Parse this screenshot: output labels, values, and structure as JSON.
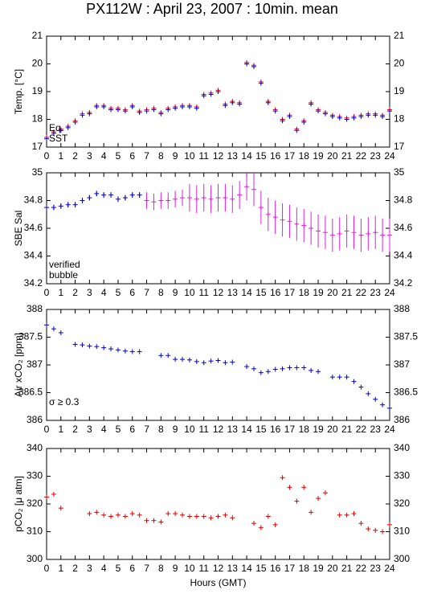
{
  "chart_data": [
    {
      "type": "scatter",
      "title": "PX112W : April 23, 2007 : 10min. mean",
      "ylabel": "Temp. [°C]",
      "x": [
        0,
        0.5,
        1,
        1.5,
        2,
        2.5,
        3,
        3.5,
        4,
        4.5,
        5,
        5.5,
        6,
        6.5,
        7,
        7.5,
        8,
        8.5,
        9,
        9.5,
        10,
        10.5,
        11,
        11.5,
        12,
        12.5,
        13,
        13.5,
        14,
        14.5,
        15,
        15.5,
        16,
        16.5,
        17,
        17.5,
        18,
        18.5,
        19,
        19.5,
        20,
        20.5,
        21,
        21.5,
        22,
        22.5,
        23,
        23.5,
        24
      ],
      "series": [
        {
          "name": "Eq.",
          "color": "#ff0000",
          "values": [
            17.35,
            17.55,
            17.65,
            17.75,
            17.95,
            18.2,
            18.25,
            18.5,
            18.5,
            18.4,
            18.4,
            18.35,
            18.5,
            18.3,
            18.35,
            18.4,
            18.25,
            18.4,
            18.45,
            18.5,
            18.5,
            18.45,
            18.9,
            18.95,
            19.05,
            18.55,
            18.65,
            18.6,
            20.05,
            19.95,
            19.35,
            18.65,
            18.35,
            18.0,
            18.15,
            17.65,
            17.95,
            18.6,
            18.35,
            18.25,
            18.15,
            18.1,
            18.05,
            18.1,
            18.15,
            18.2,
            18.2,
            18.15,
            18.35
          ]
        },
        {
          "name": "SST",
          "color": "#0000cc",
          "values": [
            17.3,
            17.5,
            17.6,
            17.7,
            17.9,
            18.15,
            18.2,
            18.45,
            18.45,
            18.35,
            18.35,
            18.3,
            18.45,
            18.25,
            18.3,
            18.35,
            18.2,
            18.35,
            18.4,
            18.45,
            18.45,
            18.4,
            18.85,
            18.9,
            19.0,
            18.5,
            18.6,
            18.55,
            20.0,
            19.9,
            19.3,
            18.6,
            18.3,
            17.95,
            18.1,
            17.6,
            17.9,
            18.55,
            18.3,
            18.2,
            18.1,
            18.05,
            18.0,
            18.05,
            18.1,
            18.15,
            18.15,
            18.1,
            18.3
          ]
        }
      ],
      "xlim": [
        0,
        24
      ],
      "xticks": [
        0,
        1,
        2,
        3,
        4,
        5,
        6,
        7,
        8,
        9,
        10,
        11,
        12,
        13,
        14,
        15,
        16,
        17,
        18,
        19,
        20,
        21,
        22,
        23,
        24
      ],
      "ylim": [
        17,
        21
      ],
      "yticks": [
        17,
        18,
        19,
        20,
        21
      ]
    },
    {
      "type": "scatter",
      "ylabel": "SBE Sal",
      "x": [
        0,
        0.5,
        1,
        1.5,
        2,
        2.5,
        3,
        3.5,
        4,
        4.5,
        5,
        5.5,
        6,
        6.5,
        7,
        7.5,
        8,
        8.5,
        9,
        9.5,
        10,
        10.5,
        11,
        11.5,
        12,
        12.5,
        13,
        13.5,
        14,
        14.5,
        15,
        15.5,
        16,
        16.5,
        17,
        17.5,
        18,
        18.5,
        19,
        19.5,
        20,
        20.5,
        21,
        21.5,
        22,
        22.5,
        23,
        23.5,
        24
      ],
      "series": [
        {
          "name": "verified",
          "color": "#0000cc",
          "values": [
            34.75,
            34.75,
            34.76,
            34.77,
            34.77,
            34.8,
            34.82,
            34.85,
            34.84,
            34.84,
            34.81,
            34.82,
            34.84,
            34.84,
            null,
            null,
            null,
            null,
            null,
            null,
            null,
            null,
            null,
            null,
            null,
            null,
            null,
            null,
            null,
            null,
            null,
            null,
            null,
            null,
            null,
            null,
            null,
            null,
            null,
            null,
            null,
            null,
            null,
            null,
            null,
            null,
            null,
            null,
            null
          ],
          "errors": [
            0.02,
            0.02,
            0.02,
            0.02,
            0.02,
            0.02,
            0.02,
            0.02,
            0.02,
            0.02,
            0.02,
            0.02,
            0.02,
            0.02,
            null,
            null,
            null,
            null,
            null,
            null,
            null,
            null,
            null,
            null,
            null,
            null,
            null,
            null,
            null,
            null,
            null,
            null,
            null,
            null,
            null,
            null,
            null,
            null,
            null,
            null,
            null,
            null,
            null,
            null,
            null,
            null,
            null,
            null,
            null
          ]
        },
        {
          "name": "bubble",
          "color": "#dd22dd",
          "values": [
            null,
            null,
            null,
            null,
            null,
            null,
            null,
            null,
            null,
            null,
            null,
            null,
            null,
            null,
            34.8,
            34.79,
            34.8,
            34.8,
            34.81,
            34.82,
            34.82,
            34.81,
            34.82,
            34.81,
            34.82,
            34.82,
            34.81,
            34.84,
            34.9,
            34.88,
            34.75,
            34.7,
            34.68,
            34.66,
            34.65,
            34.63,
            34.62,
            34.6,
            34.58,
            34.57,
            34.55,
            34.56,
            34.58,
            34.57,
            34.55,
            34.56,
            34.57,
            34.55,
            34.55
          ],
          "errors": [
            null,
            null,
            null,
            null,
            null,
            null,
            null,
            null,
            null,
            null,
            null,
            null,
            null,
            null,
            0.06,
            0.06,
            0.06,
            0.06,
            0.06,
            0.06,
            0.1,
            0.1,
            0.1,
            0.1,
            0.1,
            0.1,
            0.1,
            0.1,
            0.1,
            0.12,
            0.12,
            0.12,
            0.12,
            0.12,
            0.12,
            0.12,
            0.12,
            0.12,
            0.12,
            0.12,
            0.12,
            0.12,
            0.12,
            0.12,
            0.12,
            0.12,
            0.12,
            0.12,
            0.12
          ]
        }
      ],
      "xlim": [
        0,
        24
      ],
      "xticks": [
        0,
        1,
        2,
        3,
        4,
        5,
        6,
        7,
        8,
        9,
        10,
        11,
        12,
        13,
        14,
        15,
        16,
        17,
        18,
        19,
        20,
        21,
        22,
        23,
        24
      ],
      "ylim": [
        34.2,
        35
      ],
      "yticks": [
        34.2,
        34.4,
        34.6,
        34.8,
        35
      ]
    },
    {
      "type": "scatter",
      "ylabel": "Air xCO₂ [ppm]",
      "annotation": "σ ≥ 0.3",
      "annotation_color": "#dd22dd",
      "x": [
        0,
        0.5,
        1,
        1.5,
        2,
        2.5,
        3,
        3.5,
        4,
        4.5,
        5,
        5.5,
        6,
        6.5,
        7,
        7.5,
        8,
        8.5,
        9,
        9.5,
        10,
        10.5,
        11,
        11.5,
        12,
        12.5,
        13,
        13.5,
        14,
        14.5,
        15,
        15.5,
        16,
        16.5,
        17,
        17.5,
        18,
        18.5,
        19,
        19.5,
        20,
        20.5,
        21,
        21.5,
        22,
        22.5,
        23,
        23.5,
        24
      ],
      "series": [
        {
          "color": "#0000cc",
          "values": [
            387.72,
            387.65,
            387.58,
            null,
            387.37,
            387.36,
            387.34,
            387.33,
            387.31,
            387.29,
            387.27,
            387.25,
            387.24,
            387.24,
            null,
            null,
            387.17,
            387.17,
            387.1,
            387.1,
            387.09,
            387.06,
            387.04,
            387.07,
            387.08,
            387.04,
            387.05,
            null,
            386.97,
            386.93,
            386.86,
            386.88,
            386.92,
            386.93,
            386.95,
            386.95,
            386.95,
            386.9,
            386.88,
            null,
            386.78,
            386.78,
            386.78,
            386.7,
            386.6,
            386.48,
            386.38,
            386.28,
            386.22
          ]
        }
      ],
      "xlim": [
        0,
        24
      ],
      "xticks": [
        0,
        1,
        2,
        3,
        4,
        5,
        6,
        7,
        8,
        9,
        10,
        11,
        12,
        13,
        14,
        15,
        16,
        17,
        18,
        19,
        20,
        21,
        22,
        23,
        24
      ],
      "ylim": [
        386,
        388
      ],
      "yticks": [
        386,
        386.5,
        387,
        387.5,
        388
      ]
    },
    {
      "type": "scatter",
      "ylabel": "pCO₂ [μ atm]",
      "xlabel": "Hours (GMT)",
      "x": [
        0,
        0.5,
        1,
        1.5,
        2,
        2.5,
        3,
        3.5,
        4,
        4.5,
        5,
        5.5,
        6,
        6.5,
        7,
        7.5,
        8,
        8.5,
        9,
        9.5,
        10,
        10.5,
        11,
        11.5,
        12,
        12.5,
        13,
        13.5,
        14,
        14.5,
        15,
        15.5,
        16,
        16.5,
        17,
        17.5,
        18,
        18.5,
        19,
        19.5,
        20,
        20.5,
        21,
        21.5,
        22,
        22.5,
        23,
        23.5,
        24
      ],
      "series": [
        {
          "color": "#dd0000",
          "values": [
            322.5,
            323.5,
            318.5,
            null,
            null,
            null,
            316.5,
            317,
            316,
            315.5,
            316,
            315.5,
            316.5,
            316,
            314,
            314,
            313.5,
            316.5,
            316.5,
            316,
            315.5,
            315.5,
            315.5,
            315,
            315.5,
            316,
            315,
            null,
            null,
            313,
            311.5,
            315.5,
            312.5,
            329.5,
            326,
            321,
            326,
            317,
            322,
            324,
            null,
            316,
            316,
            316.5,
            313,
            311,
            310.5,
            310,
            312.5
          ]
        }
      ],
      "xlim": [
        0,
        24
      ],
      "xticks": [
        0,
        1,
        2,
        3,
        4,
        5,
        6,
        7,
        8,
        9,
        10,
        11,
        12,
        13,
        14,
        15,
        16,
        17,
        18,
        19,
        20,
        21,
        22,
        23,
        24
      ],
      "ylim": [
        300,
        340
      ],
      "yticks": [
        300,
        310,
        320,
        330,
        340
      ]
    }
  ]
}
